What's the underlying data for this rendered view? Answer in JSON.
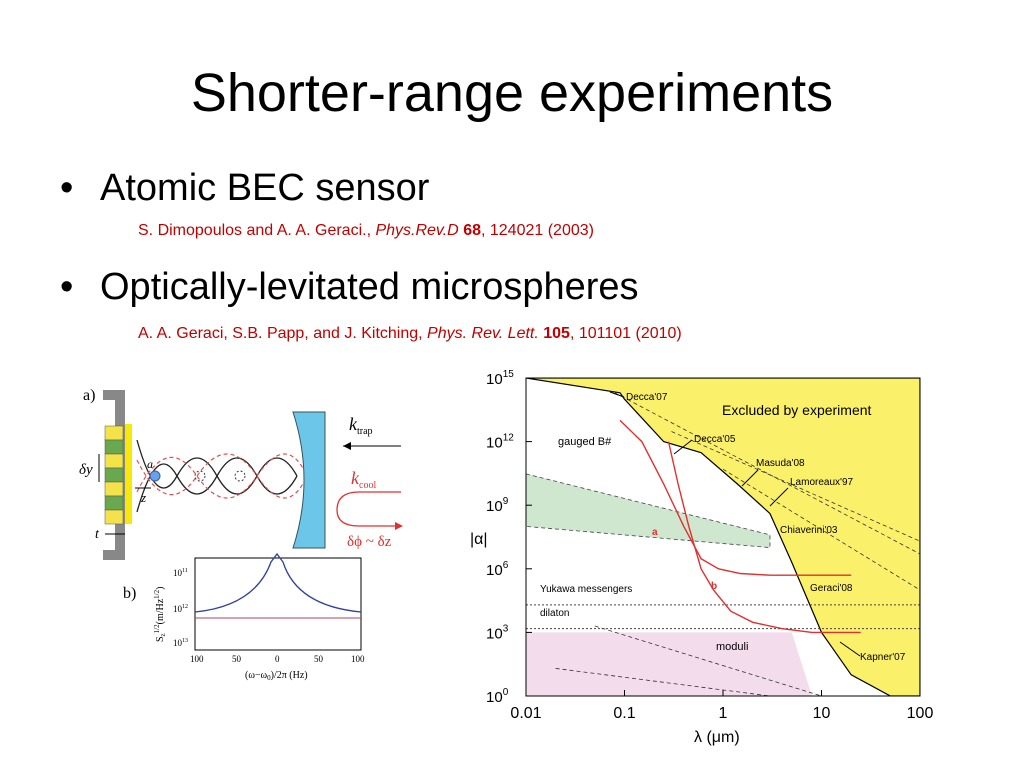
{
  "slide": {
    "title": "Shorter-range experiments",
    "bullet_char": "•",
    "bullets": [
      {
        "text": "Atomic BEC sensor",
        "ref": {
          "authors": "S. Dimopoulos and A. A. Geraci., ",
          "journal": "Phys.Rev.D",
          "volume": "68",
          "rest": ", 124021 (2003)"
        }
      },
      {
        "text": "Optically-levitated microspheres",
        "ref": {
          "authors": "A. A. Geraci, S.B. Papp, and J. Kitching,  ",
          "journal": "Phys. Rev. Lett.",
          "volume": "105",
          "rest": ", 101101 (2010)"
        }
      }
    ]
  },
  "left_figure": {
    "panel_a": "a)",
    "panel_b": "b)",
    "labels": {
      "dy": "δy",
      "a": "a",
      "z": "z",
      "t": "t",
      "k": "k",
      "trap_sub": "trap",
      "cool_sub": "cool",
      "dphi": "δϕ ~ δz"
    },
    "spectrum_plot": {
      "ylabel_main": "S",
      "ylabel_sub": "z",
      "ylabel_sup": "1/2",
      "ylabel_units": "(m/Hz",
      "ylabel_units_sup": "1/2",
      "ylabel_close": ")",
      "xlabel": "(ω−ω",
      "xlabel_sub": "0",
      "xlabel_rest": ")/2π (Hz)",
      "y_ticks": [
        {
          "base": "10",
          "exp": "11"
        },
        {
          "base": "10",
          "exp": "12"
        },
        {
          "base": "10",
          "exp": "13"
        }
      ],
      "x_ticks": [
        "100",
        "50",
        "0",
        "50",
        "100"
      ]
    }
  },
  "chart_data": {
    "type": "line",
    "title": "",
    "xlabel": "λ (μm)",
    "ylabel": "|α|",
    "xscale": "log",
    "yscale": "log",
    "xlim": [
      0.01,
      100
    ],
    "ylim": [
      1,
      1000000000000000
    ],
    "x_ticks": [
      "0.01",
      "0.1",
      "1",
      "10",
      "100"
    ],
    "y_ticks": [
      {
        "base": "10",
        "exp": "0"
      },
      {
        "base": "10",
        "exp": "3"
      },
      {
        "base": "10",
        "exp": "6"
      },
      {
        "base": "10",
        "exp": "9"
      },
      {
        "base": "10",
        "exp": "12"
      },
      {
        "base": "10",
        "exp": "15"
      }
    ],
    "region_labels": {
      "excluded": "Excluded by experiment",
      "gauged": "gauged B#",
      "yukawa": "Yukawa messengers",
      "dilaton": "dilaton",
      "moduli": "moduli"
    },
    "annotations": [
      "Decca'07",
      "Decca'05",
      "Masuda'08",
      "Lamoreaux'97",
      "Chiaverini'03",
      "Geraci'08",
      "Kapner'07",
      "a",
      "b"
    ],
    "colors": {
      "excluded": "#fbf06a",
      "gauged": "#cfe6cf",
      "moduli": "#f3dcec",
      "projection": "#e03030"
    },
    "series": [
      {
        "name": "excluded_boundary",
        "x": [
          0.01,
          0.09,
          0.1,
          0.25,
          0.6,
          1.4,
          3,
          5,
          10,
          20,
          50
        ],
        "y": [
          1000000000000000.0,
          200000000000000.0,
          100000000000000.0,
          1000000000000.0,
          300000000000.0,
          10000000000.0,
          400000000.0,
          2000000.0,
          1000.0,
          10.0,
          1
        ]
      },
      {
        "name": "a",
        "x": [
          0.09,
          0.15,
          0.25,
          0.4,
          0.6,
          0.9,
          1.5,
          3,
          6,
          12,
          20
        ],
        "y": [
          10000000000000.0,
          1000000000000.0,
          10000000000.0,
          100000000.0,
          3000000.0,
          1000000.0,
          600000.0,
          500000.0,
          500000.0,
          500000.0,
          500000.0
        ]
      },
      {
        "name": "b",
        "x": [
          0.28,
          0.35,
          0.45,
          0.6,
          0.8,
          1.2,
          2,
          4,
          8,
          15,
          25
        ],
        "y": [
          1000000000000.0,
          10000000000.0,
          100000000.0,
          1000000.0,
          100000.0,
          10000.0,
          3000.0,
          1500.0,
          1000.0,
          1000.0,
          1000.0
        ]
      }
    ]
  }
}
